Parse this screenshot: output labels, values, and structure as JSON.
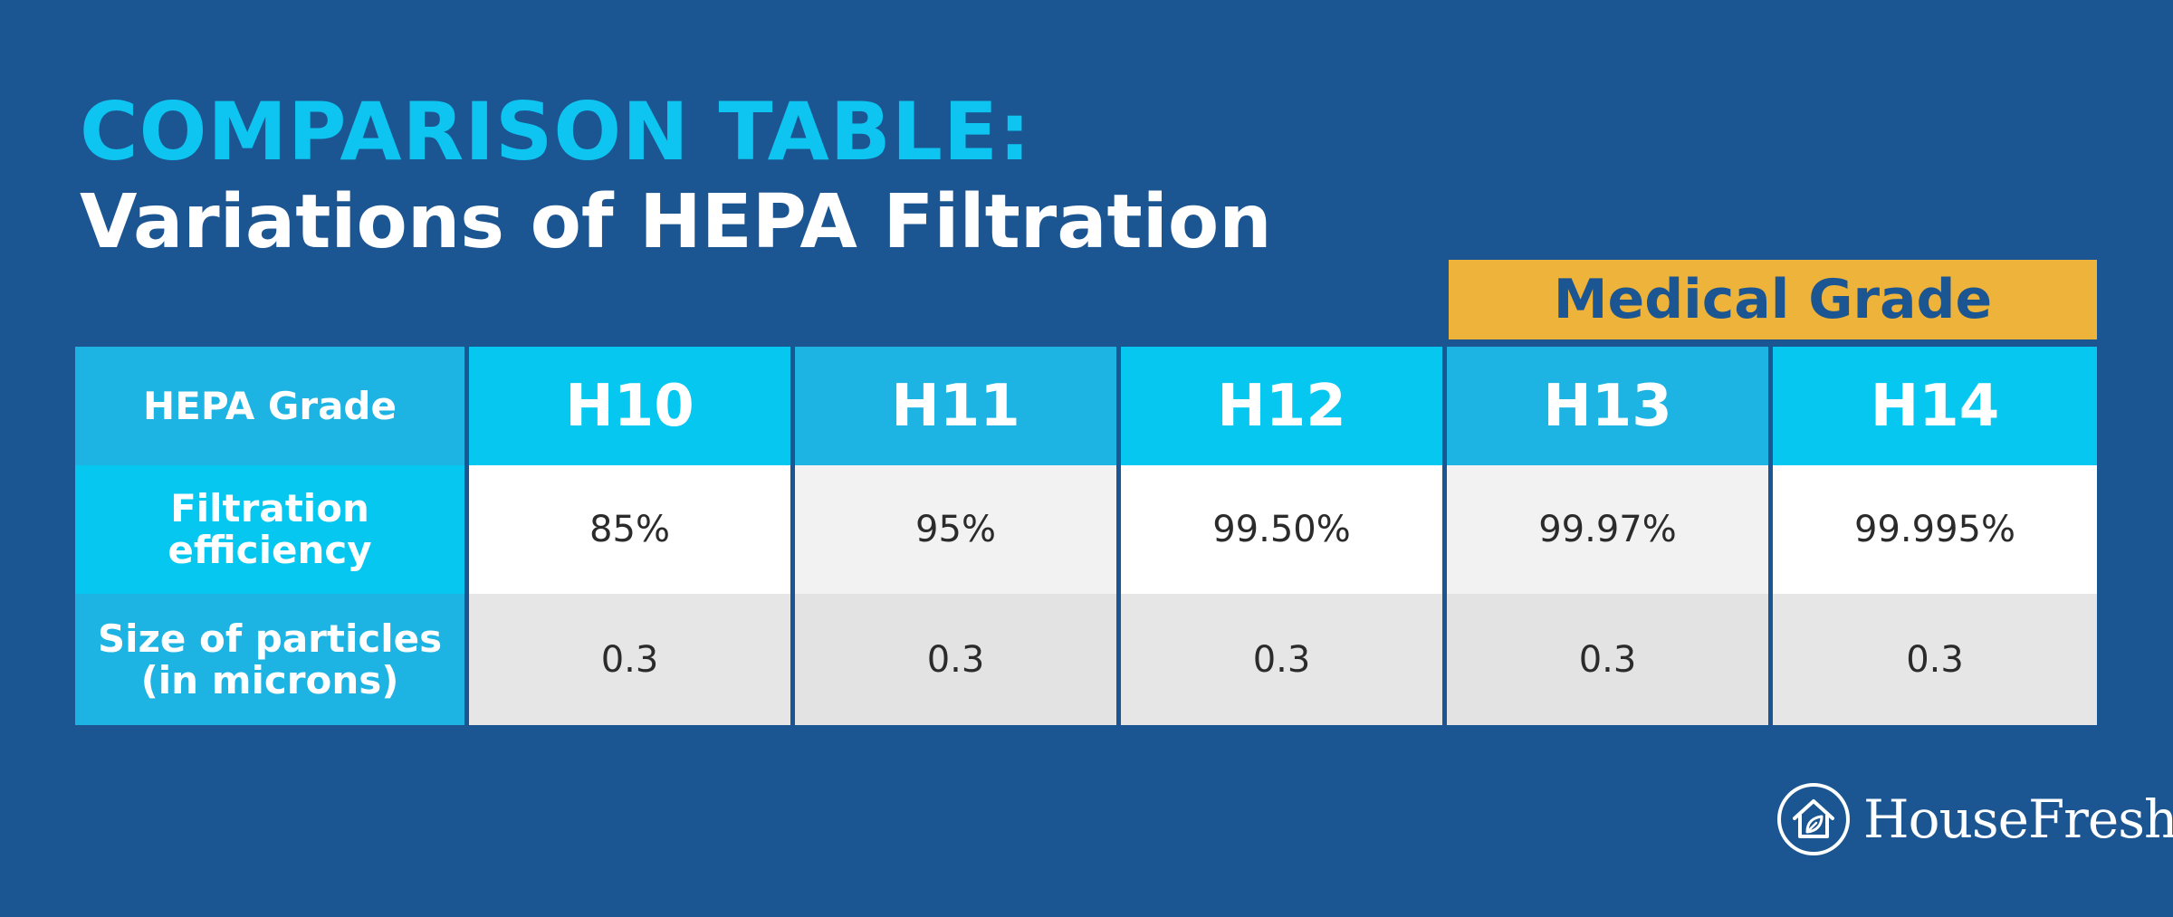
{
  "title": {
    "line1": "COMPARISON TABLE:",
    "line2": "Variations of HEPA Filtration"
  },
  "banner": {
    "label": "Medical Grade",
    "color": "#eeb33b"
  },
  "table": {
    "corner_label": "HEPA Grade",
    "columns": [
      "H10",
      "H11",
      "H12",
      "H13",
      "H14"
    ],
    "rows": [
      {
        "label": "Filtration efficiency",
        "values": [
          "85%",
          "95%",
          "99.50%",
          "99.97%",
          "99.995%"
        ]
      },
      {
        "label": "Size of particles (in microns)",
        "values": [
          "0.3",
          "0.3",
          "0.3",
          "0.3",
          "0.3"
        ]
      }
    ]
  },
  "logo": {
    "text": "HouseFresh",
    "icon": "house-leaf-icon"
  },
  "colors": {
    "background": "#1b5692",
    "accent_cyan": "#0dc5f0",
    "header_light": "#05c7f0",
    "header_dark": "#1db3e2",
    "white": "#ffffff"
  }
}
